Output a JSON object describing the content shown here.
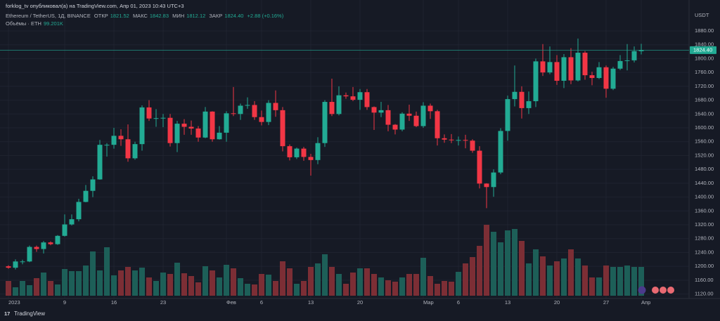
{
  "header": {
    "publisher": "forklog_tv опубликовал(а) на TradingView.com, Апр 01, 2023 10:43 UTC+3",
    "brand": "TradingView"
  },
  "chart_data": {
    "type": "candlestick",
    "symbol": "Ethereum / TetherUS, 1Д, BINANCE",
    "open_label": "ОТКР",
    "high_label": "МАКС",
    "low_label": "МИН",
    "close_label": "ЗАКР",
    "last_close": "1824.40",
    "change": "+2.88 (+0.16%)",
    "currency": "USDT",
    "up_color": "#22ab94",
    "down_color": "#f23645",
    "volume_up_color": "#1d5f58",
    "volume_down_color": "#7c2e35",
    "grid": true,
    "categories": [
      "2023",
      null,
      null,
      null,
      null,
      null,
      null,
      null,
      "9",
      null,
      null,
      null,
      null,
      null,
      null,
      "16",
      null,
      null,
      null,
      null,
      null,
      null,
      "23",
      null,
      null,
      null,
      null,
      null,
      null,
      null,
      null,
      "Фев",
      null,
      null,
      null,
      null,
      "6",
      null,
      null,
      null,
      null,
      null,
      null,
      "13",
      null,
      null,
      null,
      null,
      null,
      null,
      "20",
      null,
      null,
      null,
      null,
      null,
      null,
      null,
      null,
      "Мар",
      null,
      null,
      null,
      null,
      "6",
      null,
      null,
      null,
      null,
      null,
      null,
      "13",
      null,
      null,
      null,
      null,
      null,
      null,
      "20",
      null,
      null,
      null,
      null,
      null,
      null,
      "27",
      null,
      null,
      null,
      null,
      "Апр"
    ],
    "open": [
      1200,
      1196,
      1214,
      1214,
      1256,
      1250,
      1269,
      1264,
      1288,
      1321,
      1336,
      1386,
      1418,
      1451,
      1551,
      1551,
      1577,
      1567,
      1512,
      1553,
      1659,
      1627,
      1628,
      1629,
      1556,
      1612,
      1603,
      1598,
      1572,
      1647,
      1567,
      1586,
      1642,
      1640,
      1664,
      1666,
      1631,
      1617,
      1672,
      1651,
      1547,
      1515,
      1540,
      1516,
      1507,
      1556,
      1675,
      1640,
      1694,
      1691,
      1681,
      1703,
      1660,
      1644,
      1651,
      1609,
      1595,
      1641,
      1635,
      1605,
      1664,
      1648,
      1570,
      1566,
      1565,
      1565,
      1563,
      1534,
      1439,
      1429,
      1471,
      1591,
      1683,
      1704,
      1657,
      1677,
      1792,
      1760,
      1790,
      1736,
      1804,
      1737,
      1817,
      1752,
      1744,
      1775,
      1713,
      1771,
      1793,
      1795,
      1821.52
    ],
    "high": [
      1203,
      1220,
      1219,
      1260,
      1260,
      1273,
      1272,
      1290,
      1350,
      1350,
      1395,
      1435,
      1460,
      1565,
      1556,
      1600,
      1596,
      1610,
      1560,
      1665,
      1680,
      1654,
      1640,
      1640,
      1620,
      1625,
      1621,
      1605,
      1660,
      1648,
      1605,
      1648,
      1718,
      1670,
      1688,
      1677,
      1650,
      1680,
      1708,
      1660,
      1552,
      1543,
      1545,
      1525,
      1573,
      1680,
      1742,
      1720,
      1702,
      1718,
      1712,
      1712,
      1662,
      1675,
      1666,
      1611,
      1645,
      1667,
      1647,
      1674,
      1670,
      1652,
      1581,
      1582,
      1575,
      1580,
      1567,
      1547,
      1440,
      1480,
      1599,
      1693,
      1780,
      1720,
      1705,
      1800,
      1842,
      1835,
      1810,
      1813,
      1830,
      1858,
      1822,
      1762,
      1790,
      1780,
      1776,
      1810,
      1842,
      1835,
      1842.83
    ],
    "low": [
      1193,
      1191,
      1206,
      1212,
      1242,
      1237,
      1261,
      1262,
      1286,
      1318,
      1330,
      1385,
      1400,
      1450,
      1517,
      1540,
      1548,
      1502,
      1508,
      1534,
      1620,
      1603,
      1602,
      1546,
      1530,
      1580,
      1580,
      1560,
      1570,
      1560,
      1566,
      1560,
      1634,
      1623,
      1655,
      1623,
      1607,
      1608,
      1632,
      1532,
      1506,
      1510,
      1505,
      1462,
      1495,
      1545,
      1634,
      1636,
      1684,
      1677,
      1652,
      1652,
      1594,
      1631,
      1590,
      1581,
      1590,
      1620,
      1602,
      1600,
      1626,
      1549,
      1557,
      1556,
      1549,
      1541,
      1528,
      1425,
      1368,
      1401,
      1466,
      1563,
      1662,
      1627,
      1640,
      1660,
      1750,
      1755,
      1724,
      1715,
      1726,
      1734,
      1739,
      1723,
      1741,
      1687,
      1709,
      1767,
      1766,
      1789,
      1812.12
    ],
    "close": [
      1196,
      1214,
      1214,
      1256,
      1250,
      1269,
      1264,
      1288,
      1321,
      1336,
      1386,
      1418,
      1451,
      1551,
      1551,
      1577,
      1567,
      1512,
      1553,
      1659,
      1627,
      1628,
      1629,
      1556,
      1612,
      1603,
      1598,
      1572,
      1647,
      1567,
      1586,
      1642,
      1640,
      1664,
      1666,
      1631,
      1617,
      1672,
      1651,
      1547,
      1515,
      1540,
      1516,
      1507,
      1556,
      1675,
      1640,
      1694,
      1691,
      1681,
      1703,
      1660,
      1644,
      1651,
      1609,
      1595,
      1641,
      1635,
      1605,
      1664,
      1648,
      1570,
      1566,
      1565,
      1565,
      1563,
      1534,
      1439,
      1429,
      1471,
      1591,
      1683,
      1704,
      1657,
      1677,
      1792,
      1760,
      1790,
      1736,
      1804,
      1737,
      1817,
      1752,
      1744,
      1775,
      1713,
      1771,
      1793,
      1795,
      1821.52,
      1824.4
    ],
    "volume_name": "Объёмы · ETH",
    "volume_label": "99.201K",
    "volume": [
      50820,
      29040,
      50820,
      36300,
      60500,
      79860,
      50820,
      38720,
      91960,
      84700,
      84700,
      104060,
      152460,
      87120,
      166980,
      70180,
      87120,
      99220,
      87120,
      96800,
      62920,
      50820,
      79860,
      75020,
      113740,
      77440,
      67760,
      45980,
      101640,
      87120,
      62920,
      106480,
      94380,
      60500,
      41140,
      38720,
      75020,
      72600,
      50820,
      118580,
      94380,
      41140,
      50820,
      99220,
      111320,
      142780,
      99220,
      75020,
      41140,
      79860,
      94380,
      94380,
      75020,
      62920,
      53240,
      48400,
      62920,
      75020,
      75020,
      130680,
      67760,
      41140,
      50820,
      48400,
      82280,
      111320,
      133100,
      171820,
      244420,
      220220,
      183920,
      225060,
      229900,
      188760,
      111320,
      159720,
      135520,
      104060,
      118580,
      128260,
      159720,
      128260,
      104060,
      62920,
      62920,
      104060,
      99220,
      99220,
      104060,
      99220,
      99201
    ],
    "ylim": [
      1109,
      1949
    ],
    "yticks": [
      {
        "value": 1120,
        "label": "1120.00"
      },
      {
        "value": 1160,
        "label": "1160.00"
      },
      {
        "value": 1200,
        "label": "1200.00"
      },
      {
        "value": 1240,
        "label": "1240.00"
      },
      {
        "value": 1280,
        "label": "1280.00"
      },
      {
        "value": 1320,
        "label": "1320.00"
      },
      {
        "value": 1360,
        "label": "1360.00"
      },
      {
        "value": 1400,
        "label": "1400.00"
      },
      {
        "value": 1440,
        "label": "1440.00"
      },
      {
        "value": 1480,
        "label": "1480.00"
      },
      {
        "value": 1520,
        "label": "1520.00"
      },
      {
        "value": 1560,
        "label": "1560.00"
      },
      {
        "value": 1600,
        "label": "1600.00"
      },
      {
        "value": 1640,
        "label": "1640.00"
      },
      {
        "value": 1680,
        "label": "1680.00"
      },
      {
        "value": 1720,
        "label": "1720.00"
      },
      {
        "value": 1760,
        "label": "1760.00"
      },
      {
        "value": 1800,
        "label": "1800.00"
      },
      {
        "value": 1840,
        "label": "1840.00"
      },
      {
        "value": 1880,
        "label": "1880.00"
      }
    ]
  }
}
